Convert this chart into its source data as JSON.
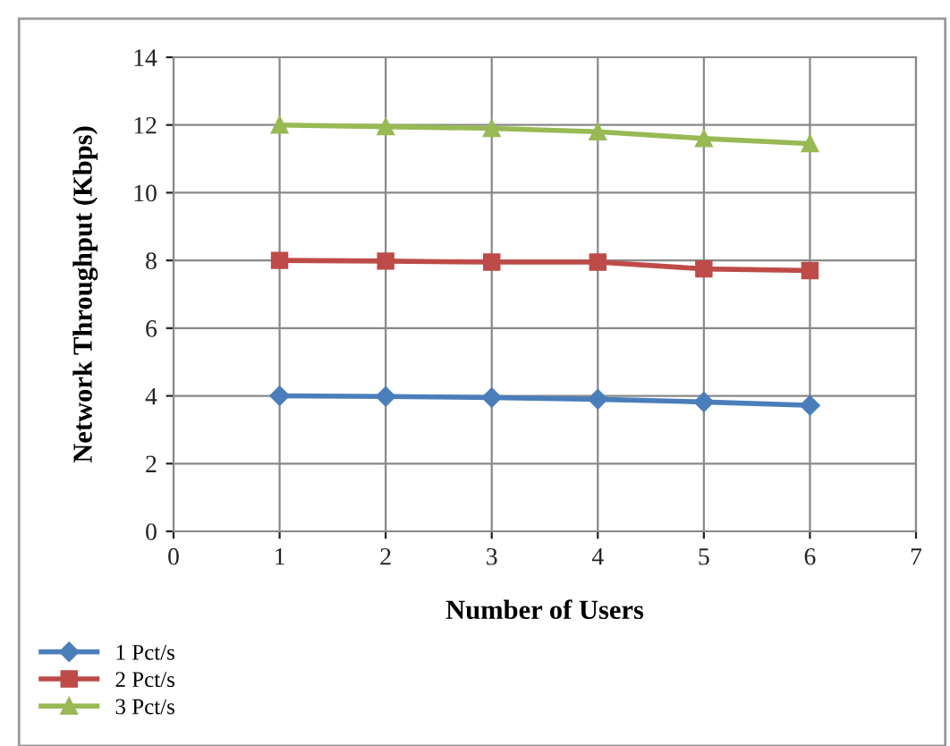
{
  "chart_data": {
    "type": "line",
    "xlabel": "Number of Users",
    "ylabel": "Network Throughput (Kbps)",
    "x": [
      1,
      2,
      3,
      4,
      5,
      6
    ],
    "series": [
      {
        "name": "1 Pct/s",
        "color": "#4a7ebb",
        "marker": "diamond",
        "values": [
          4.0,
          3.98,
          3.95,
          3.9,
          3.82,
          3.72
        ]
      },
      {
        "name": "2 Pct/s",
        "color": "#be4b48",
        "marker": "square",
        "values": [
          8.0,
          7.98,
          7.95,
          7.95,
          7.75,
          7.7
        ]
      },
      {
        "name": "3 Pct/s",
        "color": "#98b954",
        "marker": "triangle",
        "values": [
          12.0,
          11.95,
          11.9,
          11.8,
          11.6,
          11.45
        ]
      }
    ],
    "xlim": [
      0,
      7
    ],
    "xticks": [
      0,
      1,
      2,
      3,
      4,
      5,
      6,
      7
    ],
    "ylim": [
      0,
      14
    ],
    "yticks": [
      0,
      2,
      4,
      6,
      8,
      10,
      12,
      14
    ],
    "grid": true,
    "legend": "bottom left",
    "line_style": "solid"
  }
}
